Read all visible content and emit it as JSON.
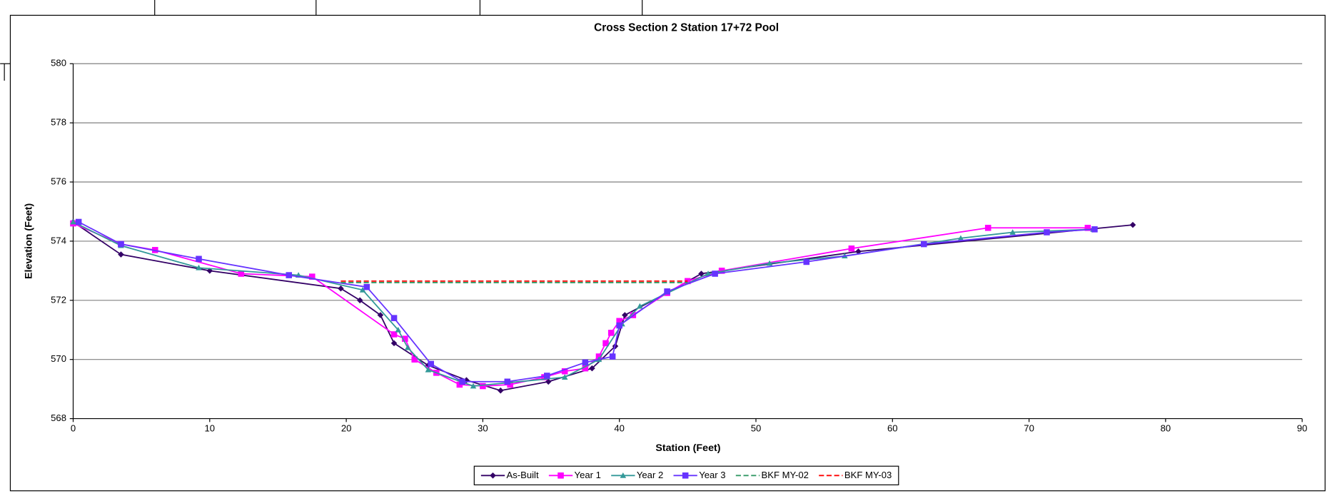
{
  "chart_data": {
    "type": "line",
    "title": "Cross Section 2 Station 17+72 Pool",
    "x_label": "Station (Feet)",
    "y_label": "Elevation (Feet)",
    "xlim": [
      0,
      90
    ],
    "xticks": [
      0,
      10,
      20,
      30,
      40,
      50,
      60,
      70,
      80,
      90
    ],
    "ylim": [
      568,
      580
    ],
    "yticks": [
      568,
      570,
      572,
      574,
      576,
      578,
      580
    ],
    "grid": true,
    "grid_color": "#808080",
    "legend": "bottom",
    "series": [
      {
        "name": "As-Built",
        "color": "#330066",
        "marker": "diamond",
        "x": [
          0,
          3.5,
          10,
          19.6,
          21,
          22.5,
          23.5,
          26,
          28.8,
          31.3,
          34.8,
          38,
          39.7,
          40.4,
          43.5,
          46,
          57.5,
          77.6
        ],
        "values": [
          574.65,
          573.55,
          573.0,
          572.4,
          572.0,
          571.5,
          570.55,
          569.8,
          569.3,
          568.95,
          569.25,
          569.7,
          570.45,
          571.5,
          572.25,
          572.9,
          573.65,
          574.55
        ]
      },
      {
        "name": "Year 1",
        "color": "#ff00ff",
        "marker": "square",
        "x": [
          0,
          3.5,
          6,
          12.3,
          17.5,
          23.5,
          24.3,
          25,
          26.6,
          28.3,
          30,
          32,
          34.5,
          36,
          37.5,
          38.5,
          39,
          39.4,
          40,
          41,
          43.5,
          45,
          47.5,
          57,
          67,
          74.3
        ],
        "values": [
          574.6,
          573.9,
          573.7,
          572.9,
          572.8,
          570.85,
          570.7,
          570.0,
          569.55,
          569.15,
          569.1,
          569.15,
          569.4,
          569.6,
          569.7,
          570.1,
          570.55,
          570.9,
          571.3,
          571.5,
          572.25,
          572.65,
          573.0,
          573.75,
          574.45,
          574.45
        ]
      },
      {
        "name": "Year 2",
        "color": "#339999",
        "marker": "triangle",
        "x": [
          0,
          3.5,
          9.2,
          16.5,
          21.2,
          23.8,
          24.5,
          26,
          29.3,
          36,
          38.5,
          40.2,
          41.5,
          46.5,
          51,
          56.5,
          65,
          68.8,
          74.7
        ],
        "values": [
          574.65,
          573.85,
          573.1,
          572.85,
          572.35,
          571.0,
          570.4,
          569.65,
          569.1,
          569.4,
          570.0,
          571.2,
          571.8,
          572.9,
          573.25,
          573.5,
          574.1,
          574.3,
          574.4
        ]
      },
      {
        "name": "Year 3",
        "color": "#6633ff",
        "marker": "square",
        "x": [
          0.4,
          3.5,
          9.2,
          15.8,
          21.5,
          23.5,
          26.2,
          28.5,
          31.8,
          34.7,
          37.5,
          39.5,
          40,
          43.5,
          47,
          53.7,
          62.3,
          71.3,
          74.8
        ],
        "values": [
          574.65,
          573.9,
          573.4,
          572.85,
          572.45,
          571.4,
          569.85,
          569.25,
          569.25,
          569.45,
          569.9,
          570.1,
          571.15,
          572.3,
          572.9,
          573.3,
          573.9,
          574.3,
          574.4
        ]
      },
      {
        "name": "BKF MY-02",
        "color": "#339966",
        "dash": true,
        "x": [
          19.6,
          45
        ],
        "values": [
          572.6,
          572.6
        ]
      },
      {
        "name": "BKF MY-03",
        "color": "#ff0000",
        "dash": true,
        "x": [
          19.6,
          45
        ],
        "values": [
          572.65,
          572.65
        ]
      }
    ]
  }
}
